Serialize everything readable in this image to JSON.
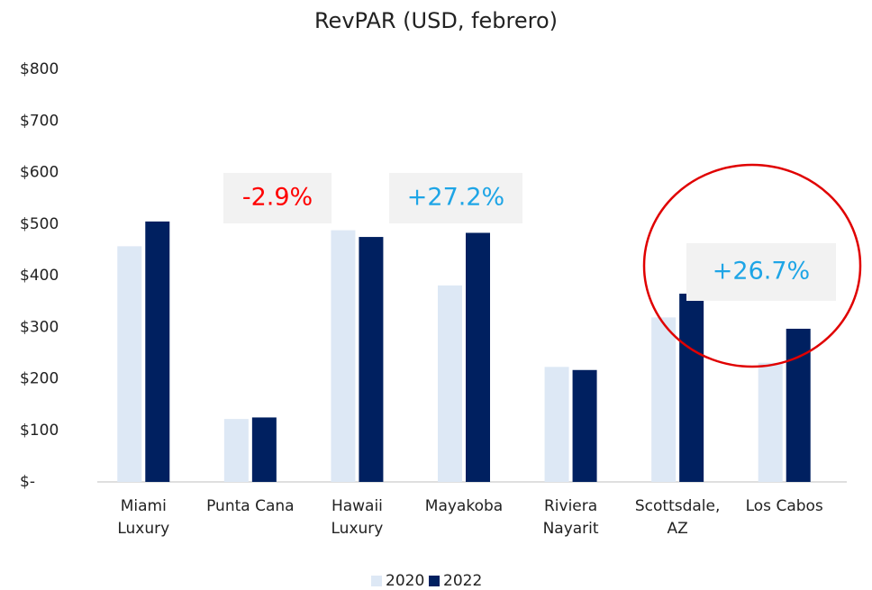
{
  "chart_data": {
    "type": "bar",
    "title": "RevPAR (USD, febrero)",
    "categories": [
      "Miami\nLuxury",
      "Punta Cana",
      "Hawaii\nLuxury",
      "Mayakoba",
      "Riviera\nNayarit",
      "Scottsdale,\nAZ",
      "Los Cabos"
    ],
    "series": [
      {
        "name": "2020",
        "color": "#dde8f5",
        "values": [
          457,
          122,
          488,
          381,
          223,
          319,
          231
        ]
      },
      {
        "name": "2022",
        "color": "#002060",
        "values": [
          505,
          125,
          475,
          483,
          217,
          365,
          297
        ]
      }
    ],
    "ylim": [
      0,
      800
    ],
    "yticks": [
      {
        "value": 0,
        "label": "$-"
      },
      {
        "value": 100,
        "label": "$100"
      },
      {
        "value": 200,
        "label": "$200"
      },
      {
        "value": 300,
        "label": "$300"
      },
      {
        "value": 400,
        "label": "$400"
      },
      {
        "value": 500,
        "label": "$500"
      },
      {
        "value": 600,
        "label": "$600"
      },
      {
        "value": 700,
        "label": "$700"
      },
      {
        "value": 800,
        "label": "$800"
      }
    ],
    "grid": false,
    "legend": "bottom",
    "annotations": [
      {
        "text": "-2.9%",
        "color": "#ff0000"
      },
      {
        "text": "+27.2%",
        "color": "#1ea5e6"
      },
      {
        "text": "+26.7%",
        "color": "#1ea5e6"
      }
    ]
  }
}
